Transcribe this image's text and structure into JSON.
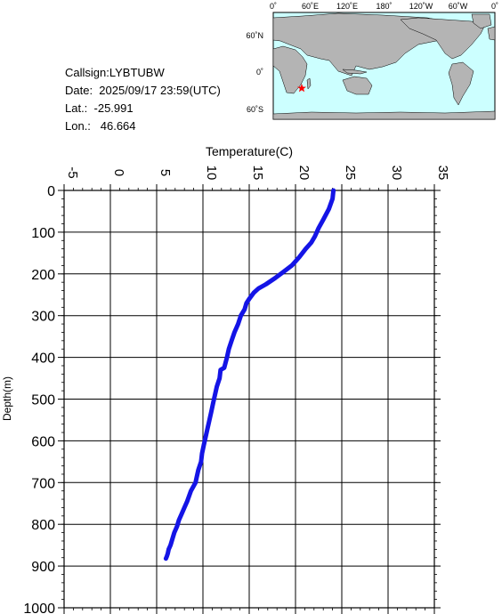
{
  "station": {
    "callsign": "Callsign:LYBTUBW",
    "date": "Date:  2025/09/17 23:59(UTC)",
    "lat": "Lat.:  -25.991",
    "lon": "Lon.:   46.664"
  },
  "map": {
    "top_labels": [
      "0˚",
      "60˚E",
      "120˚E",
      "180˚",
      "120˚W",
      "60˚W",
      "0˚"
    ],
    "side_labels": [
      "60˚N",
      "0˚",
      "60˚S"
    ],
    "ocean_color": "#ccffff",
    "land_color": "#b4b4b4",
    "marker_color": "#ff0000",
    "marker_icon": "star-icon"
  },
  "chart_data": {
    "type": "line",
    "xlabel": "Temperature(C)",
    "ylabel": "Depth(m)",
    "xlim": [
      -5,
      35
    ],
    "ylim": [
      1000,
      0
    ],
    "x_ticks": [
      "-5",
      "0",
      "5",
      "10",
      "15",
      "20",
      "25",
      "30",
      "35"
    ],
    "y_ticks": [
      "0",
      "100",
      "200",
      "300",
      "400",
      "500",
      "600",
      "700",
      "800",
      "900",
      "1000"
    ],
    "grid": true,
    "line_color": "#1414e6",
    "series": [
      {
        "x": [
          24.1,
          24.0,
          23.6,
          23.0,
          22.5,
          22.1,
          21.7,
          21.1,
          20.4,
          19.6,
          18.7,
          17.8,
          16.8,
          16.0,
          15.5,
          15.0,
          14.7,
          14.5,
          14.1,
          13.8,
          13.4,
          13.1,
          12.8,
          12.6,
          12.3,
          11.9,
          11.8,
          11.5,
          11.3,
          11.1,
          10.9,
          10.7,
          10.5,
          10.3,
          10.1,
          9.9,
          9.8,
          9.5,
          9.3,
          9.2,
          8.7,
          8.3,
          8.0,
          7.7,
          7.4,
          7.2,
          6.9,
          6.7,
          6.5,
          6.3,
          6.2,
          6.1,
          6.0
        ],
        "y": [
          0,
          20,
          45,
          70,
          90,
          110,
          125,
          140,
          160,
          180,
          195,
          210,
          225,
          235,
          245,
          260,
          270,
          285,
          300,
          320,
          340,
          360,
          380,
          400,
          425,
          430,
          450,
          470,
          490,
          510,
          530,
          550,
          570,
          590,
          610,
          630,
          650,
          670,
          690,
          700,
          720,
          745,
          760,
          775,
          790,
          805,
          820,
          835,
          850,
          860,
          870,
          877,
          882
        ]
      }
    ]
  }
}
